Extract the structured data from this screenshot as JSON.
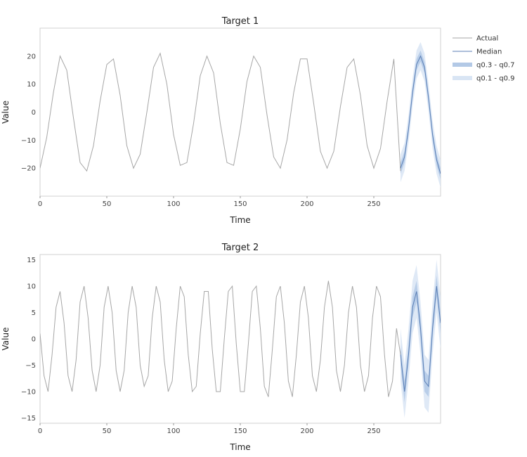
{
  "chart_data": [
    {
      "type": "line",
      "title": "Target 1",
      "xlabel": "Time",
      "ylabel": "Value",
      "xlim": [
        0,
        300
      ],
      "ylim": [
        -30,
        30
      ],
      "xticks": [
        0,
        50,
        100,
        150,
        200,
        250
      ],
      "yticks": [
        -20,
        -10,
        0,
        10,
        20
      ],
      "grid": false,
      "legend_position": "outside-right",
      "series": [
        {
          "name": "Actual",
          "color": "#a6a6a6",
          "x": [
            0,
            5,
            10,
            15,
            20,
            25,
            30,
            35,
            40,
            45,
            50,
            55,
            60,
            65,
            70,
            75,
            80,
            85,
            90,
            95,
            100,
            105,
            110,
            115,
            120,
            125,
            130,
            135,
            140,
            145,
            150,
            155,
            160,
            165,
            170,
            175,
            180,
            185,
            190,
            195,
            200,
            205,
            210,
            215,
            220,
            225,
            230,
            235,
            240,
            245,
            250,
            255,
            260,
            265,
            270
          ],
          "values": [
            -20,
            -9,
            7,
            20,
            15,
            -2,
            -18,
            -21,
            -12,
            4,
            17,
            19,
            6,
            -12,
            -20,
            -15,
            0,
            16,
            21,
            10,
            -8,
            -19,
            -18,
            -4,
            13,
            20,
            14,
            -4,
            -18,
            -19,
            -6,
            11,
            20,
            16,
            -1,
            -16,
            -20,
            -10,
            7,
            19,
            19,
            3,
            -14,
            -20,
            -14,
            2,
            16,
            19,
            6,
            -12,
            -20,
            -13,
            4,
            19,
            -21
          ]
        },
        {
          "name": "Median",
          "color": "#5b7fb5",
          "x": [
            270,
            273,
            276,
            279,
            282,
            285,
            288,
            291,
            294,
            297,
            300
          ],
          "values": [
            -20,
            -16,
            -6,
            7,
            17,
            20,
            16,
            5,
            -8,
            -17,
            -22
          ]
        }
      ],
      "bands": [
        {
          "name": "q0.3 - q0.7",
          "color": "#b3c9e6",
          "x": [
            270,
            273,
            276,
            279,
            282,
            285,
            288,
            291,
            294,
            297,
            300
          ],
          "lower": [
            -22,
            -18,
            -8,
            5,
            15,
            18,
            14,
            3,
            -10,
            -19,
            -24
          ],
          "upper": [
            -18,
            -14,
            -4,
            9,
            19,
            22,
            18,
            7,
            -6,
            -15,
            -20
          ]
        },
        {
          "name": "q0.1 - q0.9",
          "color": "#d9e5f4",
          "x": [
            270,
            273,
            276,
            279,
            282,
            285,
            288,
            291,
            294,
            297,
            300
          ],
          "lower": [
            -25,
            -21,
            -11,
            2,
            12,
            15,
            11,
            0,
            -13,
            -22,
            -27
          ],
          "upper": [
            -15,
            -11,
            -1,
            12,
            22,
            25,
            21,
            10,
            -3,
            -12,
            -17
          ]
        }
      ]
    },
    {
      "type": "line",
      "title": "Target 2",
      "xlabel": "Time",
      "ylabel": "Value",
      "xlim": [
        0,
        300
      ],
      "ylim": [
        -16,
        16
      ],
      "xticks": [
        0,
        50,
        100,
        150,
        200,
        250
      ],
      "yticks": [
        -15,
        -10,
        -5,
        0,
        5,
        10,
        15
      ],
      "grid": false,
      "series": [
        {
          "name": "Actual",
          "color": "#a6a6a6",
          "x": [
            0,
            3,
            6,
            9,
            12,
            15,
            18,
            21,
            24,
            27,
            30,
            33,
            36,
            39,
            42,
            45,
            48,
            51,
            54,
            57,
            60,
            63,
            66,
            69,
            72,
            75,
            78,
            81,
            84,
            87,
            90,
            93,
            96,
            99,
            102,
            105,
            108,
            111,
            114,
            117,
            120,
            123,
            126,
            129,
            132,
            135,
            138,
            141,
            144,
            147,
            150,
            153,
            156,
            159,
            162,
            165,
            168,
            171,
            174,
            177,
            180,
            183,
            186,
            189,
            192,
            195,
            198,
            201,
            204,
            207,
            210,
            213,
            216,
            219,
            222,
            225,
            228,
            231,
            234,
            237,
            240,
            243,
            246,
            249,
            252,
            255,
            258,
            261,
            264,
            267,
            270
          ],
          "values": [
            1,
            -7,
            -10,
            -3,
            6,
            9,
            3,
            -7,
            -10,
            -4,
            7,
            10,
            4,
            -6,
            -10,
            -5,
            6,
            10,
            5,
            -6,
            -10,
            -6,
            5,
            10,
            6,
            -5,
            -9,
            -7,
            4,
            10,
            7,
            -4,
            -10,
            -8,
            2,
            10,
            8,
            -3,
            -10,
            -9,
            1,
            9,
            9,
            -2,
            -10,
            -10,
            0,
            9,
            10,
            -1,
            -10,
            -10,
            -1,
            9,
            10,
            2,
            -9,
            -11,
            -2,
            8,
            10,
            3,
            -8,
            -11,
            -3,
            7,
            10,
            4,
            -7,
            -10,
            -4,
            6,
            11,
            6,
            -6,
            -10,
            -5,
            5,
            10,
            6,
            -5,
            -10,
            -7,
            4,
            10,
            8,
            -3,
            -11,
            -8,
            2,
            -3
          ]
        },
        {
          "name": "Median",
          "color": "#5b7fb5",
          "x": [
            270,
            273,
            276,
            279,
            282,
            285,
            288,
            291,
            294,
            297,
            300
          ],
          "values": [
            -3,
            -10,
            -3,
            6,
            9,
            2,
            -8,
            -9,
            2,
            10,
            3
          ]
        }
      ],
      "bands": [
        {
          "name": "q0.3 - q0.7",
          "color": "#b3c9e6",
          "x": [
            270,
            273,
            276,
            279,
            282,
            285,
            288,
            291,
            294,
            297,
            300
          ],
          "lower": [
            -5,
            -12,
            -5,
            4,
            7,
            0,
            -10,
            -11,
            0,
            8,
            1
          ],
          "upper": [
            -1,
            -8,
            -1,
            8,
            11,
            4,
            -6,
            -7,
            4,
            12,
            5
          ]
        },
        {
          "name": "q0.1 - q0.9",
          "color": "#d9e5f4",
          "x": [
            270,
            273,
            276,
            279,
            282,
            285,
            288,
            291,
            294,
            297,
            300
          ],
          "lower": [
            -8,
            -15,
            -8,
            1,
            4,
            -3,
            -13,
            -14,
            -3,
            5,
            -2
          ],
          "upper": [
            2,
            -5,
            2,
            11,
            14,
            7,
            -3,
            -4,
            7,
            15,
            8
          ]
        }
      ]
    }
  ]
}
